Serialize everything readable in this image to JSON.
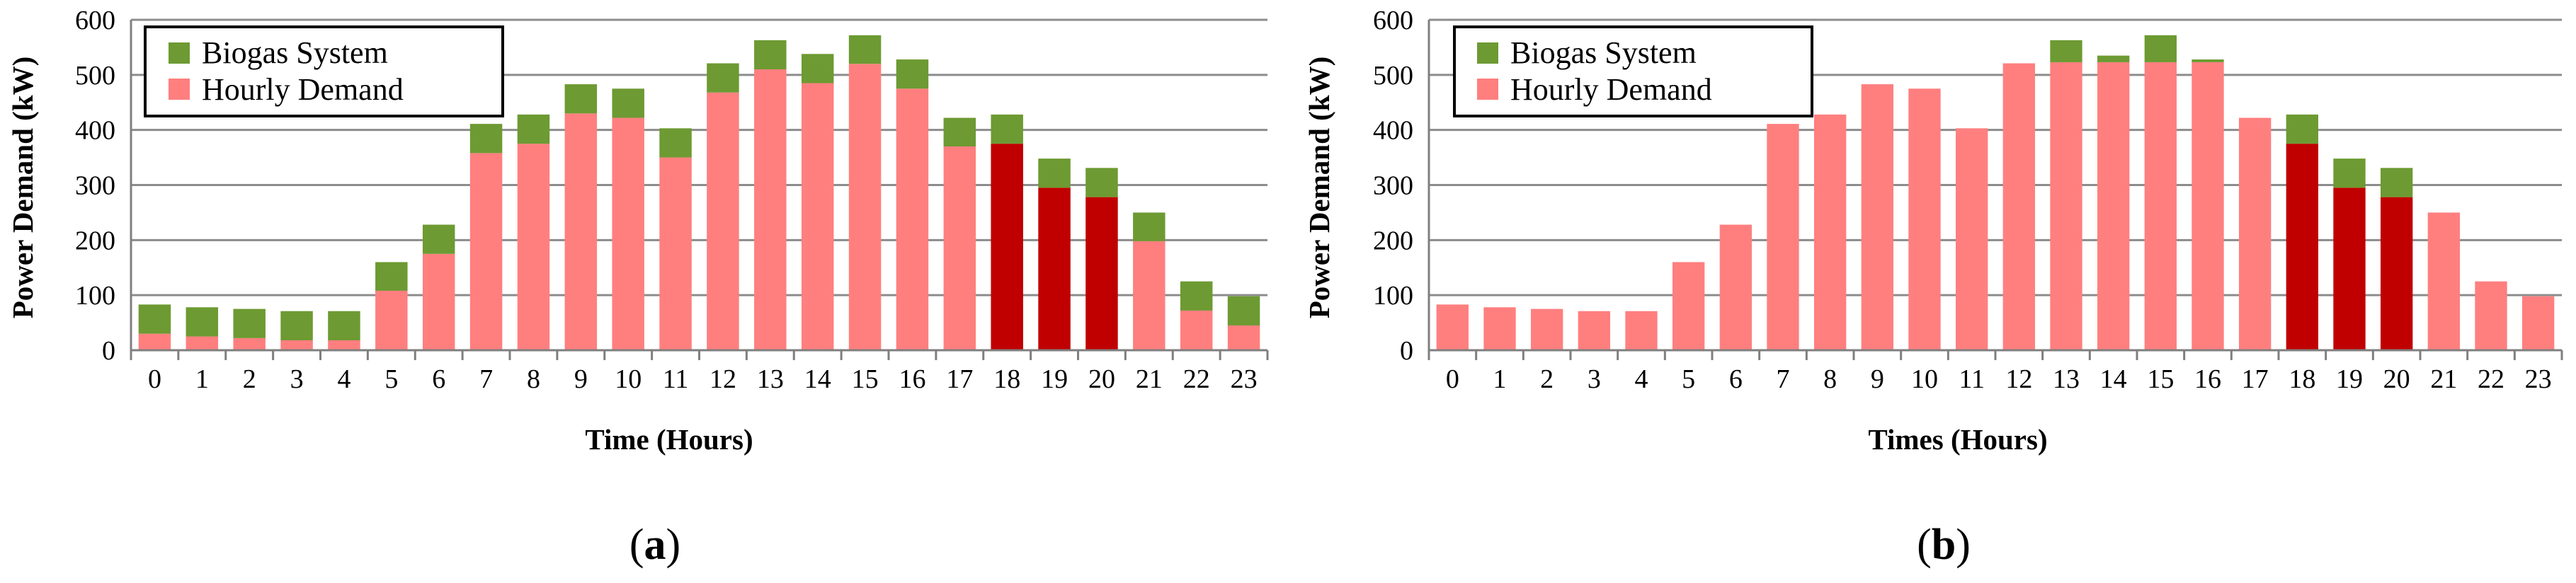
{
  "colors": {
    "biogas": "#6d9a32",
    "demand": "#ff7f7f",
    "demand_peak": "#c00000",
    "grid": "#8c8c8c",
    "axis": "#7f7f7f"
  },
  "chart_data": [
    {
      "panel_id": "a",
      "type": "bar",
      "stacked": true,
      "ylabel": "Power Demand (kW)",
      "xlabel": "Time (Hours)",
      "ylim": [
        0,
        600
      ],
      "yticks": [
        0,
        100,
        200,
        300,
        400,
        500,
        600
      ],
      "grid": true,
      "legend_position": "top-left",
      "categories": [
        "0",
        "1",
        "2",
        "3",
        "4",
        "5",
        "6",
        "7",
        "8",
        "9",
        "10",
        "11",
        "12",
        "13",
        "14",
        "15",
        "16",
        "17",
        "18",
        "19",
        "20",
        "21",
        "22",
        "23"
      ],
      "highlight_categories": [
        "18",
        "19",
        "20"
      ],
      "series": [
        {
          "name": "Hourly Demand",
          "values": [
            30,
            25,
            22,
            18,
            18,
            108,
            175,
            358,
            375,
            430,
            422,
            350,
            468,
            510,
            485,
            520,
            475,
            370,
            375,
            295,
            278,
            198,
            72,
            45
          ]
        },
        {
          "name": "Biogas System",
          "values": [
            53,
            53,
            53,
            53,
            53,
            52,
            53,
            53,
            53,
            53,
            53,
            53,
            53,
            53,
            53,
            52,
            53,
            52,
            53,
            53,
            53,
            52,
            53,
            53
          ]
        }
      ]
    },
    {
      "panel_id": "b",
      "type": "bar",
      "stacked": true,
      "ylabel": "Power Demand (kW)",
      "xlabel": "Times (Hours)",
      "ylim": [
        0,
        600
      ],
      "yticks": [
        0,
        100,
        200,
        300,
        400,
        500,
        600
      ],
      "grid": true,
      "legend_position": "top-left",
      "categories": [
        "0",
        "1",
        "2",
        "3",
        "4",
        "5",
        "6",
        "7",
        "8",
        "9",
        "10",
        "11",
        "12",
        "13",
        "14",
        "15",
        "16",
        "17",
        "18",
        "19",
        "20",
        "21",
        "22",
        "23"
      ],
      "highlight_categories": [
        "18",
        "19",
        "20"
      ],
      "series": [
        {
          "name": "Hourly Demand",
          "values": [
            83,
            78,
            75,
            71,
            71,
            160,
            228,
            411,
            428,
            483,
            475,
            403,
            521,
            523,
            523,
            523,
            523,
            422,
            375,
            295,
            278,
            250,
            125,
            98
          ]
        },
        {
          "name": "Biogas System",
          "values": [
            0,
            0,
            0,
            0,
            0,
            0,
            0,
            0,
            0,
            0,
            0,
            0,
            0,
            40,
            12,
            49,
            5,
            0,
            53,
            53,
            53,
            0,
            0,
            0
          ]
        }
      ]
    }
  ],
  "panel_labels": [
    {
      "open": "(",
      "letter": "a",
      "close": ")"
    },
    {
      "open": "(",
      "letter": "b",
      "close": ")"
    }
  ]
}
